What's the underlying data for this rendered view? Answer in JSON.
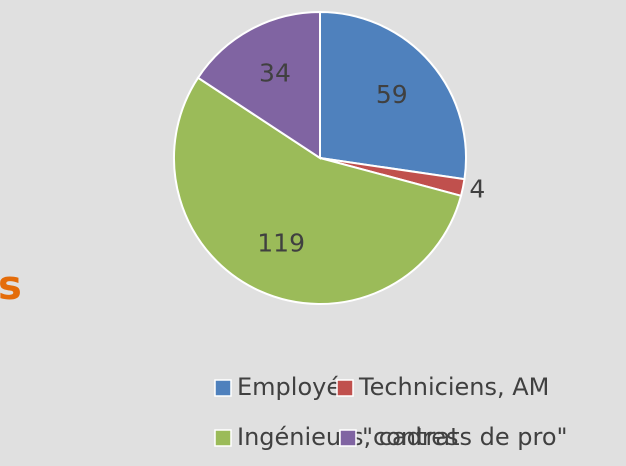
{
  "chart_data": {
    "type": "pie",
    "annotation": "s",
    "categories": [
      "Employés",
      "Techniciens, AM",
      "Ingénieurs, cadres",
      "\"contrats de pro\""
    ],
    "values": [
      59,
      4,
      119,
      34
    ],
    "colors": [
      "#4f81bd",
      "#c0504d",
      "#9bbb59",
      "#8064a2"
    ],
    "legend": "bottom"
  }
}
